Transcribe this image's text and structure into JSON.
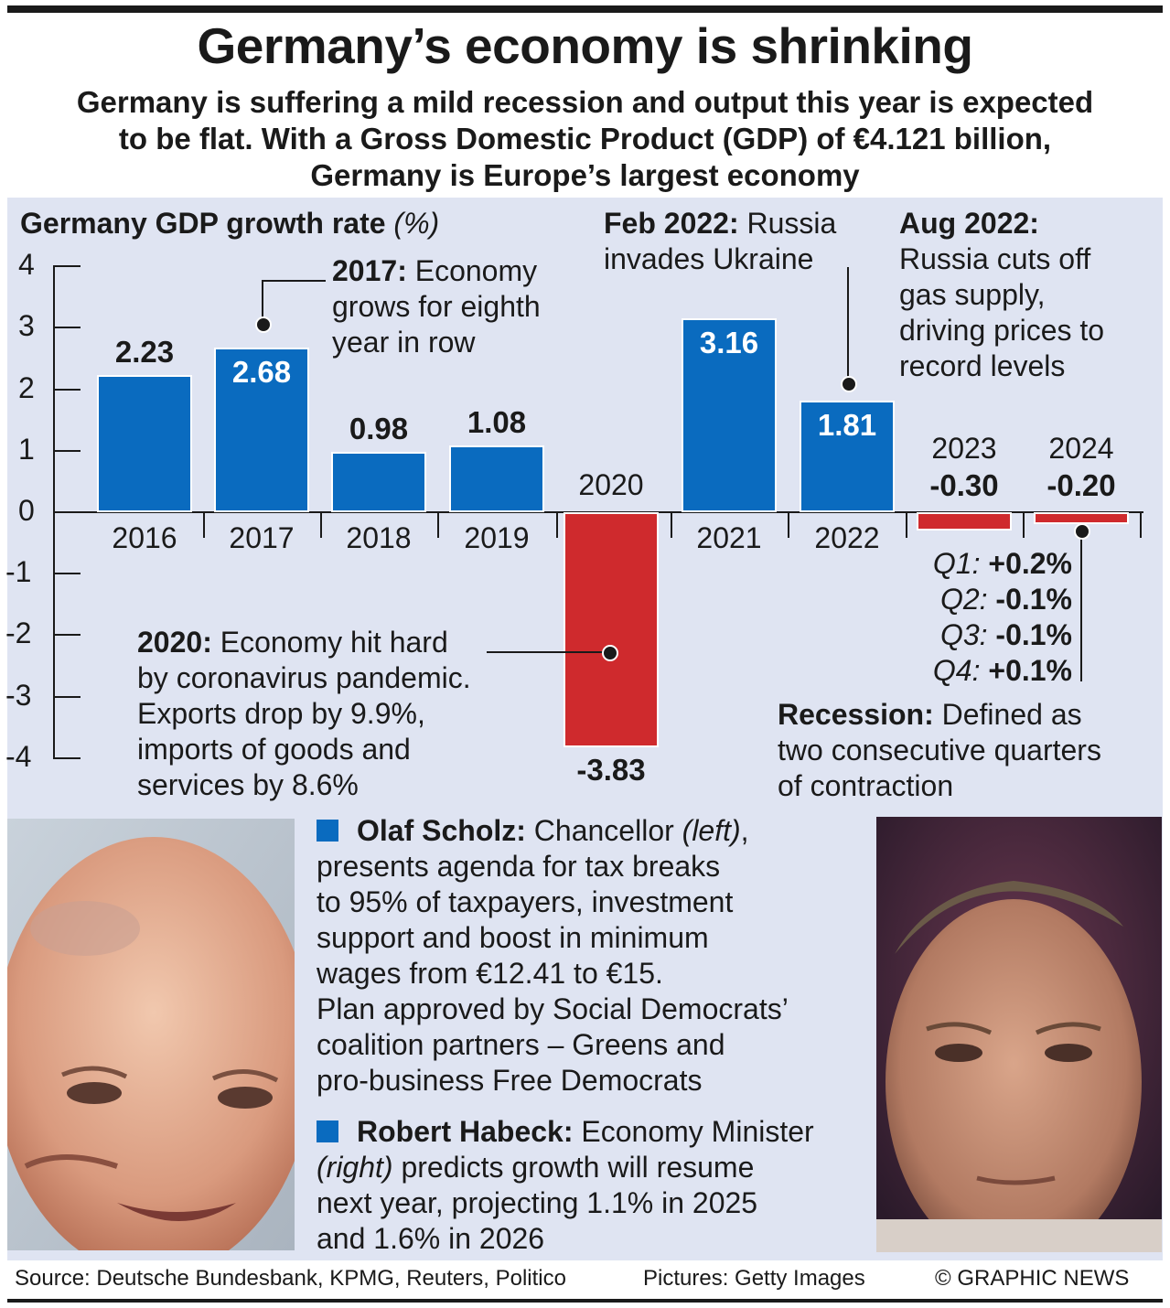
{
  "title": "Germany’s economy is shrinking",
  "subtitle": {
    "line1": "Germany is suffering a mild recession and output this year is expected",
    "line2": "to be flat. With a Gross Domestic Product (GDP) of €4.121 billion,",
    "line3": "Germany is Europe’s largest economy"
  },
  "chart_data": {
    "type": "bar",
    "title": "Germany GDP growth rate",
    "title_unit": "(%)",
    "categories": [
      "2016",
      "2017",
      "2018",
      "2019",
      "2020",
      "2021",
      "2022",
      "2023",
      "2024"
    ],
    "values": [
      2.23,
      2.68,
      0.98,
      1.08,
      -3.83,
      3.16,
      1.81,
      -0.3,
      -0.2
    ],
    "value_labels": [
      "2.23",
      "2.68",
      "0.98",
      "1.08",
      "-3.83",
      "3.16",
      "1.81",
      "-0.30",
      "-0.20"
    ],
    "ylim": [
      -4,
      4
    ],
    "yticks": [
      "4",
      "3",
      "2",
      "1",
      "0",
      "-1",
      "-2",
      "-3",
      "-4"
    ],
    "colors": {
      "positive": "#0a6bbf",
      "negative": "#cf2a2d"
    },
    "annotations": {
      "y2017": {
        "head": "2017:",
        "lines": [
          "Economy",
          "grows for eighth",
          "year in row"
        ]
      },
      "y2020": {
        "head": "2020:",
        "lines": [
          "Economy hit hard",
          "by coronavirus pandemic.",
          "Exports drop by 9.9%,",
          "imports of goods and",
          "services by 8.6%"
        ]
      },
      "feb2022": {
        "head": "Feb 2022:",
        "lines": [
          "Russia",
          "invades Ukraine"
        ]
      },
      "aug2022": {
        "head": "Aug 2022:",
        "lines": [
          "Russia cuts off",
          "gas supply,",
          "driving prices to",
          "record levels"
        ]
      },
      "quarters": [
        {
          "label": "Q1:",
          "value": "+0.2%"
        },
        {
          "label": "Q2:",
          "value": "-0.1%"
        },
        {
          "label": "Q3:",
          "value": "-0.1%"
        },
        {
          "label": "Q4:",
          "value": "+0.1%"
        }
      ],
      "recession": {
        "head": "Recession:",
        "lines": [
          "Defined as",
          "two consecutive quarters",
          "of contraction"
        ]
      }
    }
  },
  "scholz": {
    "name": "Olaf Scholz:",
    "role": "Chancellor",
    "side": "(left)",
    "lines": [
      "presents agenda for tax breaks",
      "to 95% of taxpayers, investment",
      "support and boost in minimum",
      "wages from €12.41 to €15.",
      "Plan approved by Social Democrats’",
      "coalition partners – Greens and",
      "pro-business Free Democrats"
    ]
  },
  "habeck": {
    "name": "Robert Habeck:",
    "role": "Economy Minister",
    "side": "(right)",
    "first": "predicts growth will resume",
    "lines": [
      "next year, projecting 1.1% in 2025",
      "and 1.6% in 2026"
    ]
  },
  "footer": {
    "source": "Source: Deutsche Bundesbank, KPMG, Reuters, Politico",
    "pictures": "Pictures: Getty Images",
    "credit": "© GRAPHIC NEWS"
  }
}
